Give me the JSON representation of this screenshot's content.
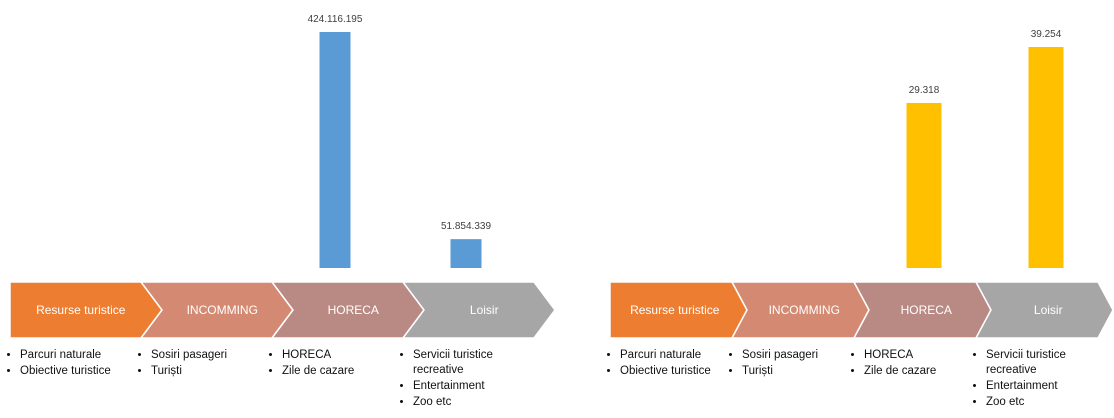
{
  "chart_data": [
    {
      "type": "bar",
      "categories": [
        "Resurse turistice",
        "INCOMMING",
        "HORECA",
        "Loisir"
      ],
      "category_colors": [
        "#ed7d31",
        "#d48a72",
        "#b98a83",
        "#a6a6a6"
      ],
      "values": [
        null,
        null,
        424116195,
        51854339
      ],
      "value_labels": [
        null,
        null,
        "424.116.195",
        "51.854.339"
      ],
      "color": "#5b9bd5",
      "bullets": [
        [
          "Parcuri naturale",
          "Obiective turistice"
        ],
        [
          "Sosiri pasageri",
          "Turiști"
        ],
        [
          "HORECA",
          "Zile de cazare"
        ],
        [
          "Servicii turistice recreative",
          "Entertainment",
          "Zoo etc"
        ]
      ]
    },
    {
      "type": "bar",
      "categories": [
        "Resurse turistice",
        "INCOMMING",
        "HORECA",
        "Loisir"
      ],
      "category_colors": [
        "#ed7d31",
        "#d48a72",
        "#b98a83",
        "#a6a6a6"
      ],
      "values": [
        null,
        null,
        29318,
        39254
      ],
      "value_labels": [
        null,
        null,
        "29.318",
        "39.254"
      ],
      "color": "#ffc000",
      "bullets": [
        [
          "Parcuri naturale",
          "Obiective turistice"
        ],
        [
          "Sosiri pasageri",
          "Turiști"
        ],
        [
          "HORECA",
          "Zile de cazare"
        ],
        [
          "Servicii turistice recreative",
          "Entertainment",
          "Zoo etc"
        ]
      ]
    }
  ]
}
